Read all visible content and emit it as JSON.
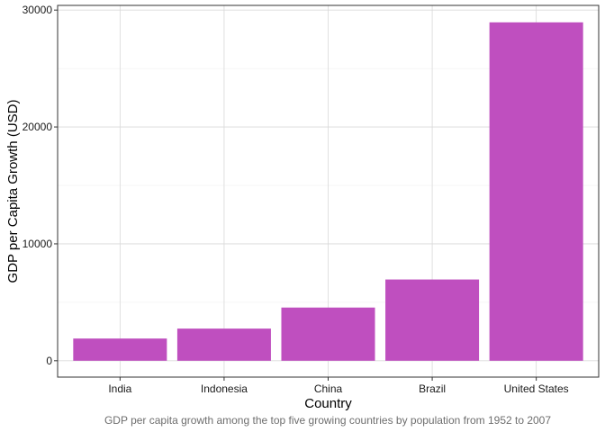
{
  "chart_data": {
    "type": "bar",
    "categories": [
      "India",
      "Indonesia",
      "China",
      "Brazil",
      "United States"
    ],
    "values": [
      1900,
      2750,
      4550,
      6950,
      28950
    ],
    "title": "",
    "xlabel": "Country",
    "ylabel": "GDP per Capita Growth (USD)",
    "ylim": [
      -1400,
      30400
    ],
    "yticks": [
      0,
      10000,
      20000,
      30000
    ],
    "ytick_labels": [
      "0",
      "10000",
      "20000",
      "30000"
    ],
    "grid": true,
    "caption": "GDP per capita growth among the top five growing countries by population from 1952 to 2007"
  },
  "colors": {
    "bar": "#bf4fbf",
    "grid_major": "#d9d9d9",
    "grid_minor": "#eeeeee",
    "panel_border": "#333333",
    "background": "#ffffff"
  }
}
